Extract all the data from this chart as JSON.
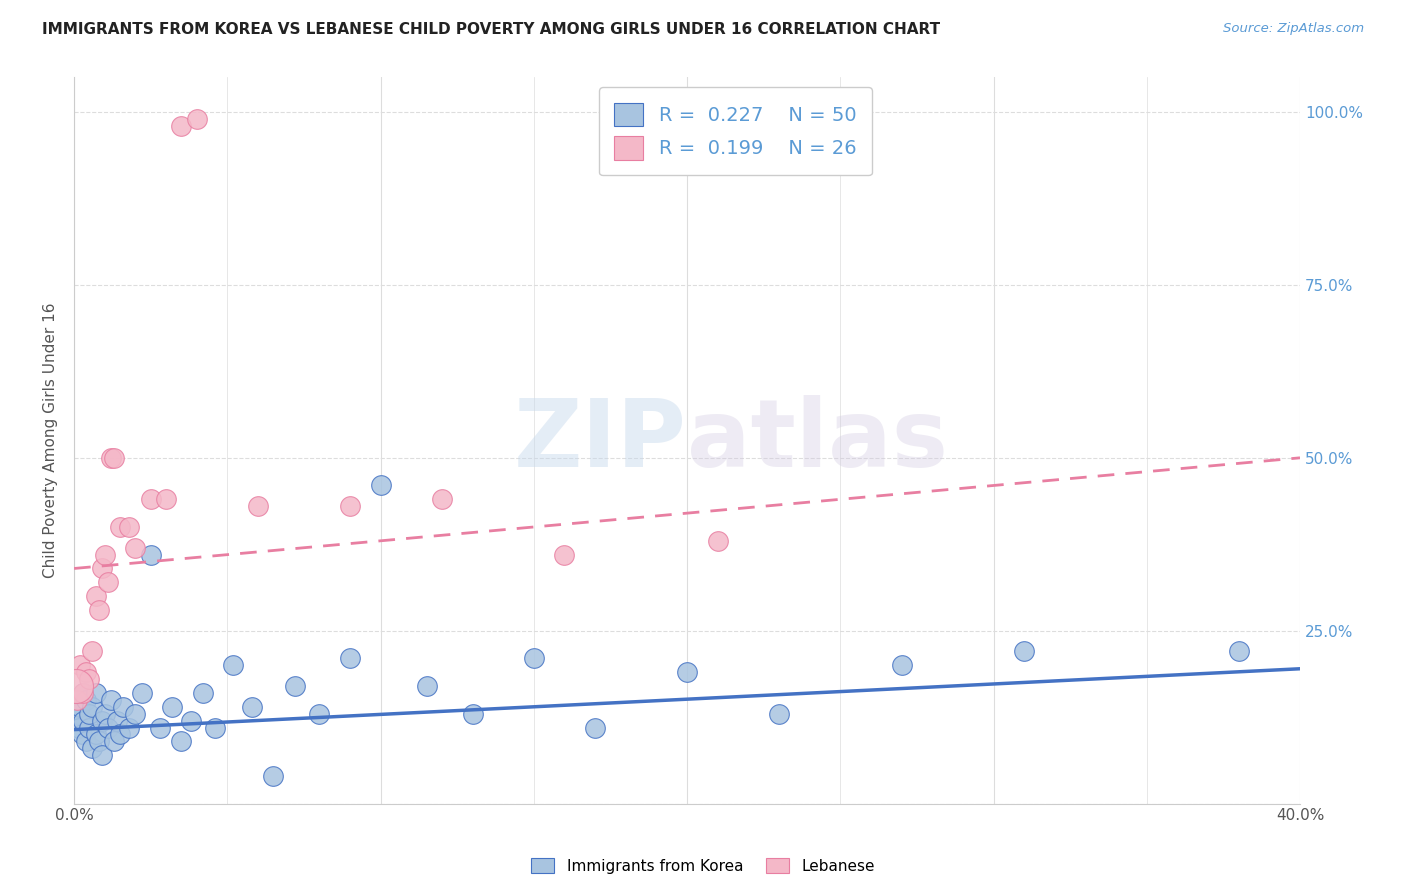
{
  "title": "IMMIGRANTS FROM KOREA VS LEBANESE CHILD POVERTY AMONG GIRLS UNDER 16 CORRELATION CHART",
  "source": "Source: ZipAtlas.com",
  "ylabel": "Child Poverty Among Girls Under 16",
  "xlim": [
    0.0,
    0.4
  ],
  "ylim": [
    0.0,
    1.05
  ],
  "legend_korea_r": "0.227",
  "legend_korea_n": "50",
  "legend_lebanese_r": "0.199",
  "legend_lebanese_n": "26",
  "korea_color": "#a8c4e0",
  "lebanon_color": "#f4b8c8",
  "korea_line_color": "#4472c4",
  "lebanon_line_color": "#e87ea1",
  "title_color": "#222222",
  "right_axis_color": "#5b9bd5",
  "watermark_zip": "ZIP",
  "watermark_atlas": "atlas",
  "korea_x": [
    0.0008,
    0.0015,
    0.002,
    0.0025,
    0.003,
    0.003,
    0.004,
    0.004,
    0.005,
    0.005,
    0.006,
    0.006,
    0.007,
    0.007,
    0.008,
    0.009,
    0.009,
    0.01,
    0.011,
    0.012,
    0.013,
    0.014,
    0.015,
    0.016,
    0.018,
    0.02,
    0.022,
    0.025,
    0.028,
    0.032,
    0.035,
    0.038,
    0.042,
    0.046,
    0.052,
    0.058,
    0.065,
    0.072,
    0.08,
    0.09,
    0.1,
    0.115,
    0.13,
    0.15,
    0.17,
    0.2,
    0.23,
    0.27,
    0.31,
    0.38
  ],
  "korea_y": [
    0.13,
    0.11,
    0.14,
    0.1,
    0.12,
    0.16,
    0.09,
    0.15,
    0.11,
    0.13,
    0.08,
    0.14,
    0.1,
    0.16,
    0.09,
    0.12,
    0.07,
    0.13,
    0.11,
    0.15,
    0.09,
    0.12,
    0.1,
    0.14,
    0.11,
    0.13,
    0.16,
    0.36,
    0.11,
    0.14,
    0.09,
    0.12,
    0.16,
    0.11,
    0.2,
    0.14,
    0.04,
    0.17,
    0.13,
    0.21,
    0.46,
    0.17,
    0.13,
    0.21,
    0.11,
    0.19,
    0.13,
    0.2,
    0.22,
    0.22
  ],
  "leb_x": [
    0.0005,
    0.001,
    0.002,
    0.003,
    0.004,
    0.005,
    0.006,
    0.007,
    0.008,
    0.009,
    0.01,
    0.011,
    0.012,
    0.013,
    0.015,
    0.018,
    0.02,
    0.025,
    0.03,
    0.035,
    0.04,
    0.06,
    0.09,
    0.12,
    0.16,
    0.21
  ],
  "leb_y": [
    0.17,
    0.15,
    0.2,
    0.16,
    0.19,
    0.18,
    0.22,
    0.3,
    0.28,
    0.34,
    0.36,
    0.32,
    0.5,
    0.5,
    0.4,
    0.4,
    0.37,
    0.44,
    0.44,
    0.98,
    0.99,
    0.43,
    0.43,
    0.44,
    0.36,
    0.38
  ],
  "leb_sizes": [
    600,
    200,
    200,
    200,
    200,
    200,
    200,
    200,
    200,
    200,
    200,
    200,
    200,
    200,
    200,
    200,
    200,
    200,
    200,
    200,
    200,
    200,
    200,
    200,
    200,
    200
  ],
  "korea_trend_x": [
    0.0,
    0.4
  ],
  "korea_trend_y": [
    0.107,
    0.195
  ],
  "leb_trend_x": [
    0.0,
    0.4
  ],
  "leb_trend_y": [
    0.34,
    0.5
  ]
}
